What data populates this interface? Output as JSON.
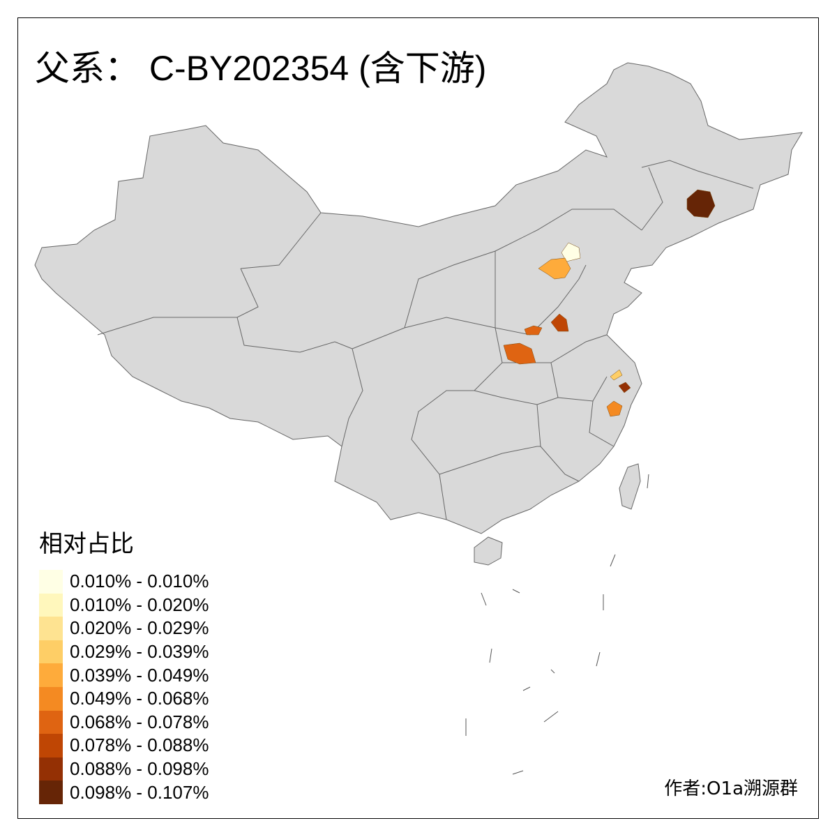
{
  "title": "父系： C-BY202354 (含下游)",
  "legend": {
    "title": "相对占比",
    "items": [
      {
        "label": "0.010% - 0.010%",
        "color": "#FFFFE5"
      },
      {
        "label": "0.010% - 0.020%",
        "color": "#FFF7BC"
      },
      {
        "label": "0.020% - 0.029%",
        "color": "#FEE391"
      },
      {
        "label": "0.029% - 0.039%",
        "color": "#FECE66"
      },
      {
        "label": "0.039% - 0.049%",
        "color": "#FEAB3B"
      },
      {
        "label": "0.049% - 0.068%",
        "color": "#F48A22"
      },
      {
        "label": "0.068% - 0.078%",
        "color": "#DF6412"
      },
      {
        "label": "0.078% - 0.088%",
        "color": "#BF4604"
      },
      {
        "label": "0.088% - 0.098%",
        "color": "#943004"
      },
      {
        "label": "0.098% - 0.107%",
        "color": "#662506"
      }
    ]
  },
  "credit": "作者:O1a溯源群",
  "map_colors": {
    "land": "#D9D9D9",
    "border": "#666666"
  }
}
